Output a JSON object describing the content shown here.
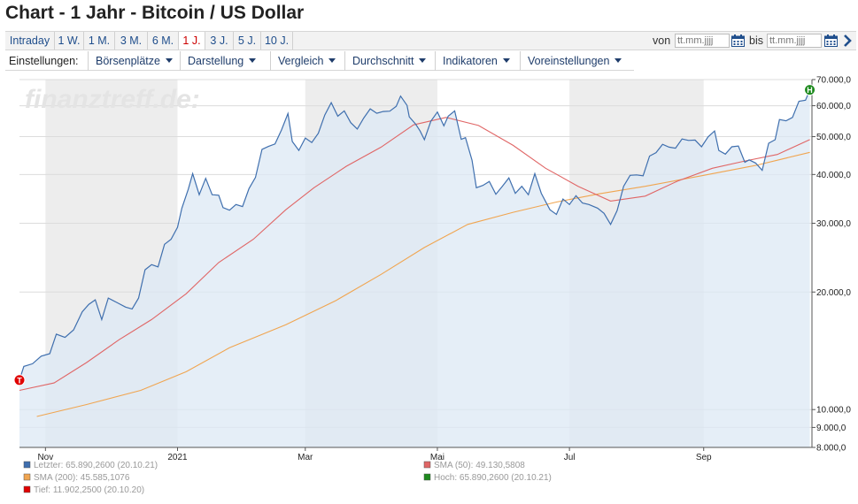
{
  "page": {
    "title": "Chart - 1 Jahr - Bitcoin / US Dollar"
  },
  "range_tabs": [
    {
      "label": "Intraday",
      "active": false
    },
    {
      "label": "1 W.",
      "active": false
    },
    {
      "label": "1 M.",
      "active": false
    },
    {
      "label": "3 M.",
      "active": false
    },
    {
      "label": "6 M.",
      "active": false
    },
    {
      "label": "1 J.",
      "active": true
    },
    {
      "label": "3 J.",
      "active": false
    },
    {
      "label": "5 J.",
      "active": false
    },
    {
      "label": "10 J.",
      "active": false
    }
  ],
  "date_range": {
    "from_label": "von",
    "from_placeholder": "tt.mm.jjjj",
    "to_label": "bis",
    "to_placeholder": "tt.mm.jjjj",
    "icons": [
      "calendar-icon",
      "calendar-icon",
      "chevron-right-icon"
    ]
  },
  "settings": {
    "label": "Einstellungen:",
    "menus": [
      "Börsenplätze",
      "Darstellung",
      "Vergleich",
      "Durchschnitt",
      "Indikatoren",
      "Voreinstellungen"
    ]
  },
  "watermark": "finanztreff.de:",
  "colors": {
    "price_line": "#3f6fae",
    "price_fill": "#dce8f4",
    "sma50": "#e06666",
    "sma200": "#f0a550",
    "low_marker": "#e00000",
    "high_marker": "#1e8a1e",
    "band": "#ededed",
    "accent_link": "#1f4e8c"
  },
  "chart_data": {
    "type": "line",
    "y_scale": "log",
    "ylim": [
      8000,
      70000
    ],
    "y_ticks": [
      {
        "value": 70000,
        "label": "70.000,0"
      },
      {
        "value": 60000,
        "label": "60.000,0"
      },
      {
        "value": 50000,
        "label": "50.000,0"
      },
      {
        "value": 40000,
        "label": "40.000,0"
      },
      {
        "value": 30000,
        "label": "30.000,0"
      },
      {
        "value": 20000,
        "label": "20.000,0"
      },
      {
        "value": 10000,
        "label": "10.000,0"
      },
      {
        "value": 9000,
        "label": "9.000,0"
      },
      {
        "value": 8000,
        "label": "8.000,0"
      }
    ],
    "x_range": [
      "2020-10-20",
      "2021-10-21"
    ],
    "x_ticks": [
      {
        "date": "2020-11-01",
        "label": "Nov"
      },
      {
        "date": "2021-01-01",
        "label": "2021"
      },
      {
        "date": "2021-03-01",
        "label": "Mar"
      },
      {
        "date": "2021-05-01",
        "label": "Mai"
      },
      {
        "date": "2021-07-01",
        "label": "Jul"
      },
      {
        "date": "2021-09-01",
        "label": "Sep"
      }
    ],
    "bands": [
      [
        "2020-11-01",
        "2021-01-01"
      ],
      [
        "2021-03-01",
        "2021-05-01"
      ],
      [
        "2021-07-01",
        "2021-09-01"
      ]
    ],
    "series": [
      {
        "name": "Letzter",
        "points": [
          [
            "2020-10-20",
            11900
          ],
          [
            "2020-10-22",
            12900
          ],
          [
            "2020-10-26",
            13100
          ],
          [
            "2020-10-30",
            13700
          ],
          [
            "2020-11-03",
            13900
          ],
          [
            "2020-11-06",
            15600
          ],
          [
            "2020-11-10",
            15300
          ],
          [
            "2020-11-14",
            16000
          ],
          [
            "2020-11-18",
            17800
          ],
          [
            "2020-11-21",
            18600
          ],
          [
            "2020-11-24",
            19100
          ],
          [
            "2020-11-27",
            17000
          ],
          [
            "2020-11-30",
            19300
          ],
          [
            "2020-12-04",
            18800
          ],
          [
            "2020-12-08",
            18300
          ],
          [
            "2020-12-11",
            18100
          ],
          [
            "2020-12-14",
            19300
          ],
          [
            "2020-12-17",
            22800
          ],
          [
            "2020-12-20",
            23500
          ],
          [
            "2020-12-23",
            23200
          ],
          [
            "2020-12-26",
            26500
          ],
          [
            "2020-12-29",
            27300
          ],
          [
            "2021-01-01",
            29300
          ],
          [
            "2021-01-03",
            32800
          ],
          [
            "2021-01-06",
            36700
          ],
          [
            "2021-01-08",
            40200
          ],
          [
            "2021-01-11",
            35500
          ],
          [
            "2021-01-14",
            39100
          ],
          [
            "2021-01-17",
            35500
          ],
          [
            "2021-01-20",
            35400
          ],
          [
            "2021-01-22",
            32900
          ],
          [
            "2021-01-25",
            32400
          ],
          [
            "2021-01-28",
            33500
          ],
          [
            "2021-01-31",
            33100
          ],
          [
            "2021-02-03",
            36800
          ],
          [
            "2021-02-06",
            39300
          ],
          [
            "2021-02-09",
            46400
          ],
          [
            "2021-02-12",
            47200
          ],
          [
            "2021-02-15",
            47900
          ],
          [
            "2021-02-18",
            52000
          ],
          [
            "2021-02-21",
            57300
          ],
          [
            "2021-02-23",
            48600
          ],
          [
            "2021-02-26",
            46100
          ],
          [
            "2021-03-01",
            49600
          ],
          [
            "2021-03-04",
            48300
          ],
          [
            "2021-03-07",
            51000
          ],
          [
            "2021-03-10",
            56800
          ],
          [
            "2021-03-13",
            61100
          ],
          [
            "2021-03-16",
            56400
          ],
          [
            "2021-03-19",
            58200
          ],
          [
            "2021-03-22",
            54300
          ],
          [
            "2021-03-25",
            52300
          ],
          [
            "2021-03-28",
            55800
          ],
          [
            "2021-03-31",
            58900
          ],
          [
            "2021-04-03",
            57400
          ],
          [
            "2021-04-06",
            58000
          ],
          [
            "2021-04-09",
            58100
          ],
          [
            "2021-04-12",
            59800
          ],
          [
            "2021-04-14",
            63500
          ],
          [
            "2021-04-17",
            60100
          ],
          [
            "2021-04-18",
            56200
          ],
          [
            "2021-04-21",
            53800
          ],
          [
            "2021-04-23",
            51700
          ],
          [
            "2021-04-25",
            49100
          ],
          [
            "2021-04-28",
            54800
          ],
          [
            "2021-05-01",
            57800
          ],
          [
            "2021-05-04",
            53300
          ],
          [
            "2021-05-06",
            56400
          ],
          [
            "2021-05-09",
            58200
          ],
          [
            "2021-05-12",
            49200
          ],
          [
            "2021-05-14",
            49700
          ],
          [
            "2021-05-17",
            43500
          ],
          [
            "2021-05-19",
            37000
          ],
          [
            "2021-05-22",
            37500
          ],
          [
            "2021-05-25",
            38400
          ],
          [
            "2021-05-28",
            35600
          ],
          [
            "2021-05-31",
            37300
          ],
          [
            "2021-06-03",
            39200
          ],
          [
            "2021-06-06",
            35800
          ],
          [
            "2021-06-09",
            37300
          ],
          [
            "2021-06-12",
            35500
          ],
          [
            "2021-06-15",
            40200
          ],
          [
            "2021-06-18",
            35800
          ],
          [
            "2021-06-22",
            32500
          ],
          [
            "2021-06-25",
            31600
          ],
          [
            "2021-06-28",
            34600
          ],
          [
            "2021-07-01",
            33500
          ],
          [
            "2021-07-04",
            35300
          ],
          [
            "2021-07-07",
            33800
          ],
          [
            "2021-07-10",
            33500
          ],
          [
            "2021-07-14",
            32800
          ],
          [
            "2021-07-17",
            31800
          ],
          [
            "2021-07-20",
            29800
          ],
          [
            "2021-07-23",
            32300
          ],
          [
            "2021-07-26",
            37300
          ],
          [
            "2021-07-29",
            39800
          ],
          [
            "2021-08-01",
            39900
          ],
          [
            "2021-08-04",
            39700
          ],
          [
            "2021-08-07",
            44600
          ],
          [
            "2021-08-10",
            45500
          ],
          [
            "2021-08-13",
            47800
          ],
          [
            "2021-08-16",
            47000
          ],
          [
            "2021-08-19",
            46700
          ],
          [
            "2021-08-22",
            49300
          ],
          [
            "2021-08-25",
            48900
          ],
          [
            "2021-08-28",
            49000
          ],
          [
            "2021-08-31",
            47100
          ],
          [
            "2021-09-03",
            49900
          ],
          [
            "2021-09-06",
            51700
          ],
          [
            "2021-09-08",
            46100
          ],
          [
            "2021-09-11",
            45100
          ],
          [
            "2021-09-14",
            47100
          ],
          [
            "2021-09-17",
            47300
          ],
          [
            "2021-09-20",
            43000
          ],
          [
            "2021-09-22",
            43600
          ],
          [
            "2021-09-25",
            42800
          ],
          [
            "2021-09-28",
            41000
          ],
          [
            "2021-10-01",
            48100
          ],
          [
            "2021-10-04",
            49100
          ],
          [
            "2021-10-06",
            55300
          ],
          [
            "2021-10-09",
            54900
          ],
          [
            "2021-10-12",
            56000
          ],
          [
            "2021-10-15",
            61600
          ],
          [
            "2021-10-18",
            62000
          ],
          [
            "2021-10-20",
            65890
          ]
        ]
      },
      {
        "name": "SMA (50)",
        "points": [
          [
            "2020-10-20",
            11200
          ],
          [
            "2020-11-05",
            11700
          ],
          [
            "2020-11-20",
            13200
          ],
          [
            "2020-12-05",
            15100
          ],
          [
            "2020-12-20",
            17000
          ],
          [
            "2021-01-05",
            19800
          ],
          [
            "2021-01-20",
            23800
          ],
          [
            "2021-02-05",
            27300
          ],
          [
            "2021-02-20",
            32500
          ],
          [
            "2021-03-05",
            37000
          ],
          [
            "2021-03-20",
            42000
          ],
          [
            "2021-04-05",
            47000
          ],
          [
            "2021-04-20",
            53600
          ],
          [
            "2021-05-05",
            56000
          ],
          [
            "2021-05-20",
            53400
          ],
          [
            "2021-06-05",
            47500
          ],
          [
            "2021-06-20",
            41500
          ],
          [
            "2021-07-05",
            37300
          ],
          [
            "2021-07-20",
            34200
          ],
          [
            "2021-08-05",
            35200
          ],
          [
            "2021-08-20",
            38500
          ],
          [
            "2021-09-05",
            41500
          ],
          [
            "2021-09-20",
            43300
          ],
          [
            "2021-10-05",
            45000
          ],
          [
            "2021-10-20",
            49131
          ]
        ]
      },
      {
        "name": "SMA (200)",
        "points": [
          [
            "2020-10-28",
            9600
          ],
          [
            "2020-11-20",
            10300
          ],
          [
            "2020-12-15",
            11200
          ],
          [
            "2021-01-05",
            12500
          ],
          [
            "2021-01-25",
            14400
          ],
          [
            "2021-02-20",
            16500
          ],
          [
            "2021-03-15",
            19000
          ],
          [
            "2021-04-05",
            22200
          ],
          [
            "2021-04-25",
            26000
          ],
          [
            "2021-05-15",
            29800
          ],
          [
            "2021-06-05",
            32000
          ],
          [
            "2021-06-25",
            34000
          ],
          [
            "2021-07-15",
            35700
          ],
          [
            "2021-08-05",
            37300
          ],
          [
            "2021-09-01",
            39800
          ],
          [
            "2021-09-25",
            42200
          ],
          [
            "2021-10-20",
            45585
          ]
        ]
      }
    ],
    "markers": [
      {
        "label": "T",
        "date": "2020-10-20",
        "value": 11902.25,
        "color": "#e00000"
      },
      {
        "label": "H",
        "date": "2021-10-20",
        "value": 65890.26,
        "color": "#1e8a1e"
      }
    ],
    "legend": [
      {
        "text": "Letzter: 65.890,2600 (20.10.21)",
        "color": "#3f6fae"
      },
      {
        "text": "SMA (50): 49.130,5808",
        "color": "#e06666"
      },
      {
        "text": "SMA (200): 45.585,1076",
        "color": "#f0a550"
      },
      {
        "text": "Hoch: 65.890,2600 (20.10.21)",
        "color": "#1e8a1e"
      },
      {
        "text": "Tief: 11.902,2500 (20.10.20)",
        "color": "#e00000"
      }
    ]
  }
}
